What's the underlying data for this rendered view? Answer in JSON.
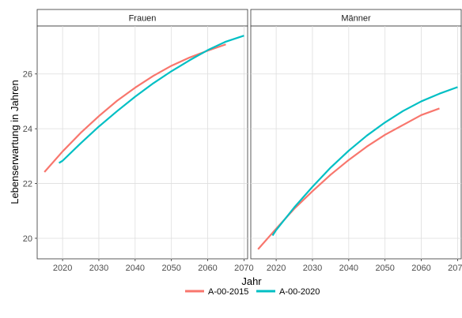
{
  "chart_data": {
    "type": "line",
    "xlabel": "Jahr",
    "ylabel": "Lebenserwartung in Jahren",
    "xlim": [
      2013,
      2071
    ],
    "ylim": [
      19.25,
      27.75
    ],
    "x_ticks": [
      2020,
      2030,
      2040,
      2050,
      2060,
      2070
    ],
    "y_ticks": [
      20,
      22,
      24,
      26
    ],
    "x_tick_labels": [
      "2020",
      "2030",
      "2040",
      "2050",
      "2060",
      "2070"
    ],
    "y_tick_labels": [
      "20",
      "22",
      "24",
      "26"
    ],
    "grid": true,
    "legend_position": "bottom",
    "legend_labels": [
      "A-00-2015",
      "A-00-2020"
    ],
    "colors": {
      "A-00-2015": "#F8766D",
      "A-00-2020": "#00BFC4"
    },
    "panels": [
      {
        "title": "Frauen",
        "series": [
          {
            "name": "A-00-2015",
            "x": [
              2015,
              2020,
              2025,
              2030,
              2035,
              2040,
              2045,
              2050,
              2055,
              2060,
              2065
            ],
            "y": [
              22.42,
              23.17,
              23.85,
              24.46,
              25.02,
              25.5,
              25.93,
              26.3,
              26.6,
              26.85,
              27.08
            ]
          },
          {
            "name": "A-00-2020",
            "x": [
              2019,
              2020,
              2025,
              2030,
              2035,
              2040,
              2045,
              2050,
              2055,
              2060,
              2065,
              2070
            ],
            "y": [
              22.75,
              22.83,
              23.47,
              24.08,
              24.64,
              25.17,
              25.66,
              26.1,
              26.5,
              26.87,
              27.18,
              27.4
            ]
          }
        ]
      },
      {
        "title": "Männer",
        "series": [
          {
            "name": "A-00-2015",
            "x": [
              2015,
              2020,
              2025,
              2030,
              2035,
              2040,
              2045,
              2050,
              2055,
              2060,
              2065
            ],
            "y": [
              19.6,
              20.35,
              21.08,
              21.72,
              22.32,
              22.86,
              23.35,
              23.78,
              24.14,
              24.5,
              24.74
            ]
          },
          {
            "name": "A-00-2020",
            "x": [
              2019,
              2020,
              2025,
              2030,
              2035,
              2040,
              2045,
              2050,
              2055,
              2060,
              2065,
              2070
            ],
            "y": [
              20.1,
              20.3,
              21.13,
              21.88,
              22.58,
              23.2,
              23.75,
              24.23,
              24.65,
              25.0,
              25.28,
              25.52
            ]
          }
        ]
      }
    ]
  }
}
